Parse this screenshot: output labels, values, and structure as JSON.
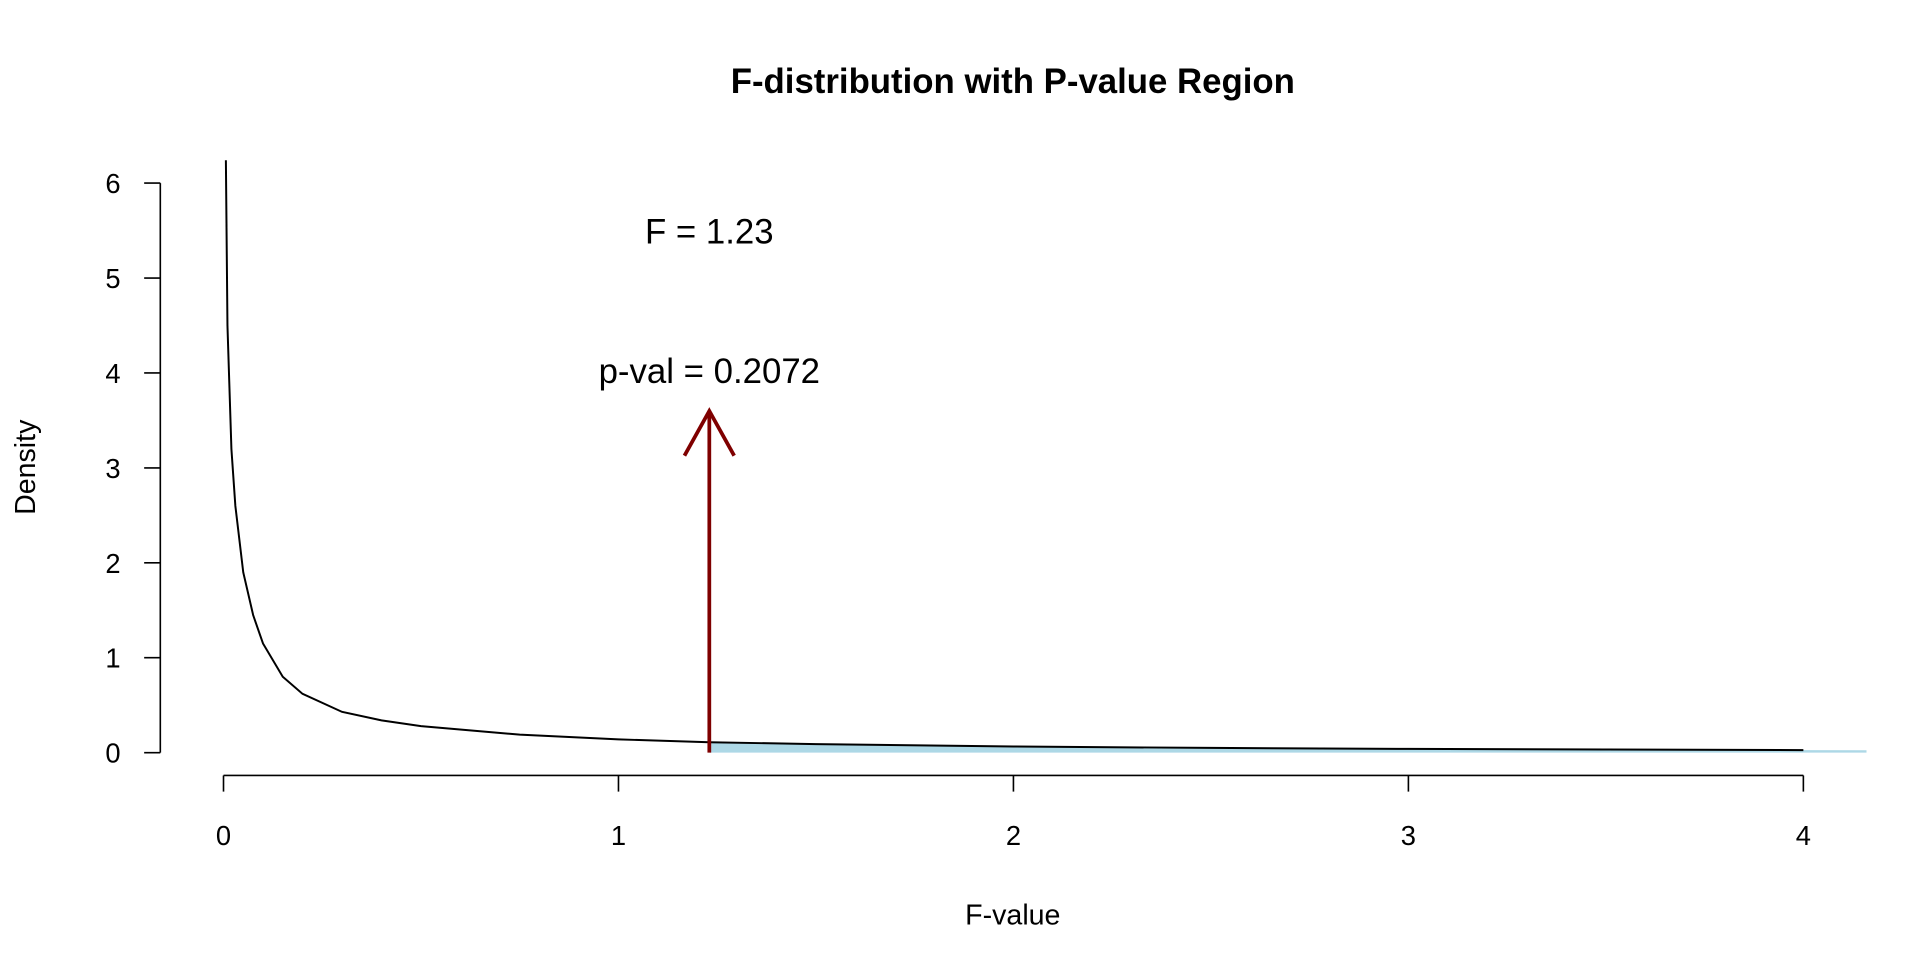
{
  "chart_data": {
    "type": "line",
    "title": "F-distribution with P-value Region",
    "x_label": "F-value",
    "y_label": "Density",
    "annotations": [
      "F = 1.23",
      "p-val = 0.2072"
    ],
    "xlim": [
      -0.16,
      4.16
    ],
    "ylim": [
      -0.24,
      6.24
    ],
    "xticks": [
      0,
      1,
      2,
      3,
      4
    ],
    "yticks": [
      0,
      1,
      2,
      3,
      4,
      5,
      6
    ],
    "curve": {
      "color": "#000000",
      "x": [
        0.006,
        0.01,
        0.02,
        0.03,
        0.05,
        0.075,
        0.1,
        0.15,
        0.2,
        0.3,
        0.4,
        0.5,
        0.75,
        1,
        1.23,
        1.5,
        2,
        2.5,
        3,
        3.5,
        4
      ],
      "values": [
        6.25,
        4.5,
        3.2,
        2.6,
        1.9,
        1.45,
        1.15,
        0.8,
        0.62,
        0.43,
        0.34,
        0.28,
        0.19,
        0.14,
        0.11,
        0.09,
        0.065,
        0.05,
        0.04,
        0.033,
        0.027
      ]
    },
    "region": {
      "color": "#add8e6",
      "x": [
        1.23,
        1.5,
        2,
        2.5,
        3,
        3.5,
        4,
        4.16
      ],
      "values": [
        0.11,
        0.09,
        0.065,
        0.05,
        0.04,
        0.033,
        0.027,
        0.025
      ]
    },
    "arrow": {
      "x": 1.23,
      "y_end": 3.6,
      "color": "#7f0000"
    }
  }
}
